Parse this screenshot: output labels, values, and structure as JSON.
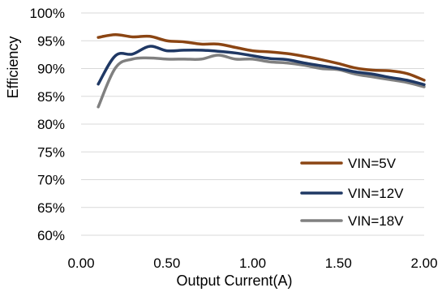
{
  "chart_data": {
    "type": "line",
    "title": "",
    "xlabel": "Output Current(A)",
    "ylabel": "Efficiency",
    "xlim": [
      0,
      2.0
    ],
    "ylim": [
      60,
      100
    ],
    "x_ticks": [
      "0.00",
      "0.50",
      "1.00",
      "1.50",
      "2.00"
    ],
    "x_tick_values": [
      0,
      0.5,
      1.0,
      1.5,
      2.0
    ],
    "y_ticks": [
      "60%",
      "65%",
      "70%",
      "75%",
      "80%",
      "85%",
      "90%",
      "95%",
      "100%"
    ],
    "y_tick_values": [
      60,
      65,
      70,
      75,
      80,
      85,
      90,
      95,
      100
    ],
    "grid": "horizontal",
    "legend_position": "bottom-right",
    "series": [
      {
        "name": "VIN=5V",
        "color": "#8B4513",
        "x": [
          0.1,
          0.2,
          0.3,
          0.4,
          0.5,
          0.6,
          0.7,
          0.8,
          0.9,
          1.0,
          1.1,
          1.2,
          1.3,
          1.4,
          1.5,
          1.6,
          1.7,
          1.8,
          1.9,
          2.0
        ],
        "y": [
          95.6,
          96.1,
          95.7,
          95.8,
          95.0,
          94.8,
          94.4,
          94.4,
          93.8,
          93.2,
          93.0,
          92.7,
          92.2,
          91.6,
          90.9,
          90.1,
          89.7,
          89.6,
          89.1,
          87.9
        ]
      },
      {
        "name": "VIN=12V",
        "color": "#1F3864",
        "x": [
          0.1,
          0.2,
          0.3,
          0.4,
          0.5,
          0.6,
          0.7,
          0.8,
          0.9,
          1.0,
          1.1,
          1.2,
          1.3,
          1.4,
          1.5,
          1.6,
          1.7,
          1.8,
          1.9,
          2.0
        ],
        "y": [
          87.2,
          92.3,
          92.6,
          94.0,
          93.2,
          93.3,
          93.3,
          93.1,
          92.8,
          92.3,
          91.8,
          91.6,
          91.0,
          90.5,
          90.0,
          89.4,
          89.0,
          88.4,
          87.9,
          87.1
        ]
      },
      {
        "name": "VIN=18V",
        "color": "#808080",
        "x": [
          0.1,
          0.2,
          0.3,
          0.4,
          0.5,
          0.6,
          0.7,
          0.8,
          0.9,
          1.0,
          1.1,
          1.2,
          1.3,
          1.4,
          1.5,
          1.6,
          1.7,
          1.8,
          1.9,
          2.0
        ],
        "y": [
          83.1,
          90.1,
          91.7,
          91.9,
          91.7,
          91.7,
          91.7,
          92.4,
          91.7,
          91.7,
          91.2,
          91.0,
          90.6,
          90.0,
          89.8,
          89.0,
          88.5,
          88.0,
          87.5,
          86.7
        ]
      }
    ]
  }
}
